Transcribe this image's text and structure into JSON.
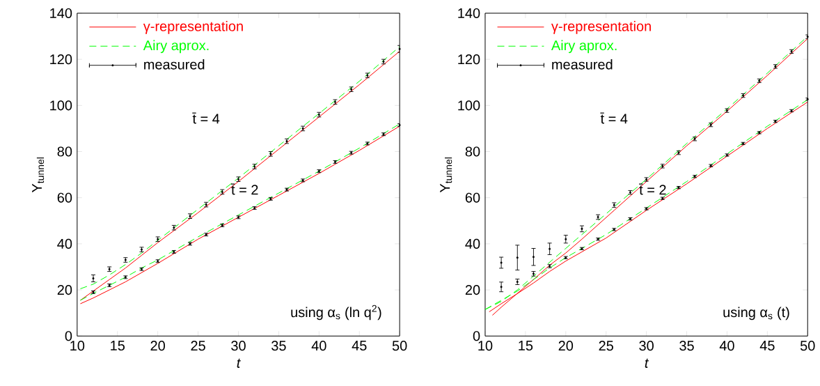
{
  "chart_data": [
    {
      "type": "line",
      "xlabel": "t",
      "ylabel": "Y$_{tunnel}$",
      "xlim": [
        10,
        50
      ],
      "ylim": [
        0,
        140
      ],
      "xticks": [
        10,
        15,
        20,
        25,
        30,
        35,
        40,
        45,
        50
      ],
      "yticks": [
        0,
        20,
        40,
        60,
        80,
        100,
        120,
        140
      ],
      "legend": "top left",
      "marker": "none",
      "grid": false,
      "annotations": [
        "t̄ = 4",
        "t̄ = 2",
        "using α$_{s}$ (ln q$^{2}$)"
      ],
      "series": [
        {
          "name": "γ-representation",
          "color": "#ff0000",
          "line_style": "solid",
          "x": [
            10.4,
            12,
            14,
            16,
            18,
            20,
            25,
            30,
            35,
            40,
            45,
            50
          ],
          "values": [
            15.5,
            19.5,
            24.5,
            29.5,
            35,
            40.5,
            53.5,
            67,
            81,
            95,
            109,
            123.5
          ]
        },
        {
          "color": "#ff0000",
          "line_style": "solid",
          "x": [
            10.4,
            12,
            14,
            16,
            18,
            20,
            25,
            30,
            35,
            40,
            45,
            50
          ],
          "values": [
            14,
            16.5,
            20,
            23.5,
            27.5,
            31.5,
            42,
            51.5,
            61,
            70.5,
            80.5,
            91
          ]
        },
        {
          "name": "Airy aprox.",
          "color": "#00ff00",
          "line_style": "dashed",
          "x": [
            10.4,
            12,
            14,
            16,
            18,
            20,
            25,
            30,
            35,
            40,
            45,
            50
          ],
          "values": [
            20.5,
            22.5,
            26.5,
            31,
            36,
            41.5,
            55,
            68.5,
            82.5,
            96.5,
            110.5,
            125.5
          ]
        },
        {
          "color": "#00ff00",
          "line_style": "dashed",
          "x": [
            10.4,
            12,
            14,
            16,
            18,
            20,
            25,
            30,
            35,
            40,
            45,
            50
          ],
          "values": [
            15.5,
            18.5,
            22,
            25.5,
            29.5,
            33,
            43,
            52.5,
            62,
            71.5,
            81.5,
            92
          ]
        },
        {
          "name": "measured",
          "type": "scatter",
          "marker": "circle",
          "color": "#000000",
          "x": [
            12,
            14,
            16,
            18,
            20,
            22,
            24,
            26,
            28,
            30,
            32,
            34,
            36,
            38,
            40,
            42,
            44,
            46,
            48,
            50
          ],
          "values": [
            25,
            29,
            33,
            37.5,
            42,
            47,
            52,
            57,
            62.5,
            68,
            73.5,
            79,
            84.5,
            90,
            96,
            101.5,
            107,
            113,
            119,
            124.5
          ],
          "errors": [
            1.5,
            1,
            1,
            1,
            1,
            1,
            1,
            1,
            1,
            1,
            1,
            1,
            1,
            1,
            1,
            1,
            1,
            1,
            1,
            1.5
          ]
        },
        {
          "type": "scatter",
          "marker": "circle",
          "color": "#000000",
          "x": [
            12,
            14,
            16,
            18,
            20,
            22,
            24,
            26,
            28,
            30,
            32,
            34,
            36,
            38,
            40,
            42,
            44,
            46,
            48,
            50
          ],
          "values": [
            19,
            22,
            25.5,
            29,
            32.5,
            36.5,
            40,
            44,
            48,
            51.5,
            55.5,
            59.5,
            63.5,
            67.5,
            71.5,
            75.5,
            79.5,
            83.5,
            87.5,
            91.5
          ],
          "errors": [
            0.6,
            0.6,
            0.6,
            0.6,
            0.6,
            0.6,
            0.6,
            0.6,
            0.6,
            0.6,
            0.6,
            0.6,
            0.6,
            0.6,
            0.6,
            0.6,
            0.6,
            0.6,
            0.6,
            0.6
          ]
        }
      ]
    },
    {
      "type": "line",
      "xlabel": "t",
      "ylabel": "Y$_{tunnel}$",
      "xlim": [
        10,
        50
      ],
      "ylim": [
        0,
        140
      ],
      "xticks": [
        10,
        15,
        20,
        25,
        30,
        35,
        40,
        45,
        50
      ],
      "yticks": [
        0,
        20,
        40,
        60,
        80,
        100,
        120,
        140
      ],
      "legend": "top left",
      "marker": "none",
      "grid": false,
      "annotations": [
        "t̄ = 4",
        "t̄ = 2",
        "using α$_{s}$ (t)"
      ],
      "series": [
        {
          "name": "γ-representation",
          "color": "#ff0000",
          "line_style": "solid",
          "x": [
            10.9,
            12,
            14,
            16,
            18,
            20,
            22,
            26,
            30,
            35,
            40,
            45,
            50
          ],
          "values": [
            9,
            12.5,
            18.5,
            24.5,
            30.7,
            36,
            42,
            54.5,
            67,
            82.5,
            97.5,
            113,
            129
          ]
        },
        {
          "color": "#ff0000",
          "line_style": "solid",
          "x": [
            10.5,
            12,
            14,
            16,
            18,
            20,
            22,
            25,
            30,
            35,
            40,
            45,
            50
          ],
          "values": [
            10.5,
            14,
            18.4,
            23,
            28,
            32.5,
            36.5,
            42.5,
            54.5,
            66,
            78,
            90,
            101.5
          ]
        },
        {
          "name": "Airy aprox.",
          "color": "#00ff00",
          "line_style": "dashed",
          "x": [
            10,
            12,
            14,
            16,
            18,
            20,
            25,
            30,
            35,
            40,
            45,
            50
          ],
          "values": [
            11.5,
            15,
            20,
            26,
            32,
            38,
            53,
            68,
            83.5,
            98.5,
            114,
            130
          ]
        },
        {
          "color": "#00ff00",
          "line_style": "dashed",
          "x": [
            10,
            12,
            14,
            16,
            18,
            20,
            22,
            25,
            30,
            35,
            40,
            45,
            50
          ],
          "values": [
            11.5,
            15.5,
            19.5,
            24.5,
            29.5,
            34,
            38,
            44,
            55.5,
            67,
            79,
            91,
            102.5
          ]
        },
        {
          "name": "measured",
          "type": "scatter",
          "marker": "circle",
          "color": "#000000",
          "x": [
            12,
            14,
            16,
            18,
            20,
            22,
            24,
            26,
            28,
            30,
            32,
            34,
            36,
            38,
            40,
            42,
            44,
            46,
            48,
            50
          ],
          "values": [
            31.8,
            34,
            34.3,
            37.8,
            42,
            46.5,
            51.6,
            56.8,
            62.3,
            67.9,
            73.7,
            79.5,
            85.5,
            91.6,
            97.8,
            104.3,
            110.7,
            116.9,
            123.4,
            129.8
          ],
          "errors": [
            2.4,
            5.4,
            3.7,
            2.5,
            1.7,
            1.3,
            1,
            1,
            0.8,
            0.8,
            0.8,
            0.8,
            0.8,
            0.8,
            0.8,
            0.8,
            0.8,
            0.8,
            0.8,
            0.8
          ]
        },
        {
          "type": "scatter",
          "marker": "circle",
          "color": "#000000",
          "x": [
            12,
            14,
            16,
            18,
            20,
            22,
            24,
            26,
            28,
            30,
            32,
            34,
            36,
            38,
            40,
            42,
            44,
            46,
            48,
            50
          ],
          "values": [
            21.3,
            23.5,
            27,
            30.3,
            34,
            37.9,
            42,
            46.2,
            50.8,
            55.2,
            59.7,
            64.4,
            69.2,
            73.9,
            78.5,
            83.5,
            88.2,
            93.1,
            97.7,
            102.7
          ],
          "errors": [
            2.1,
            1.2,
            1,
            0.7,
            0.5,
            0.5,
            0.5,
            0.5,
            0.5,
            0.5,
            0.5,
            0.5,
            0.5,
            0.5,
            0.5,
            0.5,
            0.5,
            0.5,
            0.5,
            0.5
          ]
        }
      ]
    }
  ]
}
